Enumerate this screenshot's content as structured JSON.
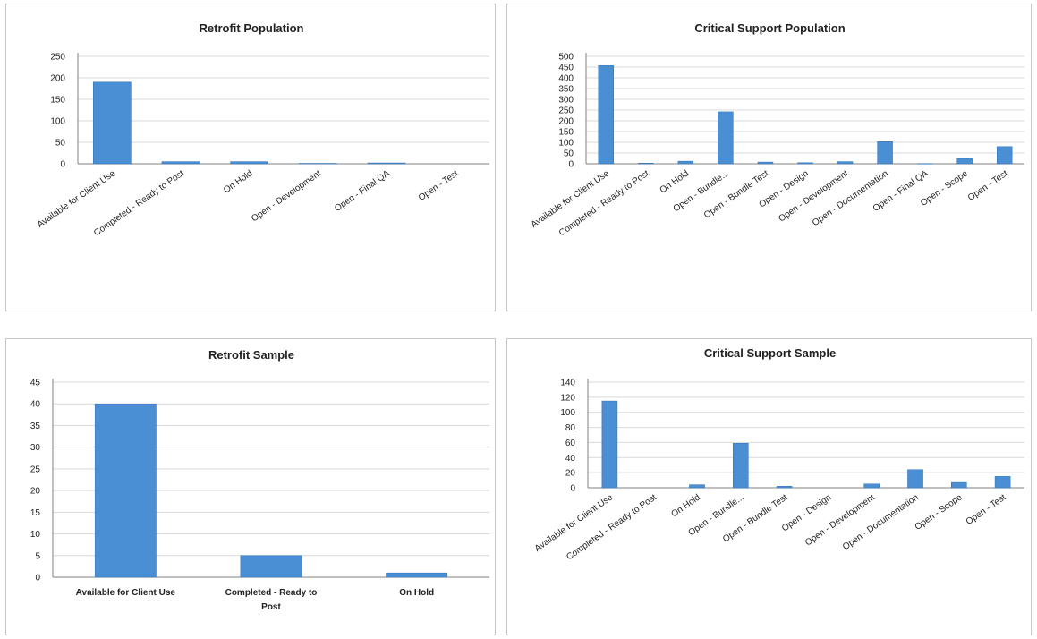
{
  "chart_data": [
    {
      "type": "bar",
      "title": "Retrofit Population",
      "categories": [
        "Available for Client Use",
        "Completed - Ready to Post",
        "On Hold",
        "Open - Development",
        "Open - Final QA",
        "Open - Test"
      ],
      "values": [
        190,
        5,
        5,
        1,
        2,
        0
      ],
      "ylim": [
        0,
        250
      ],
      "yticks": [
        0,
        50,
        100,
        150,
        200,
        250
      ],
      "grid": true,
      "legend": "none",
      "bar_color": "#4a8fd4"
    },
    {
      "type": "bar",
      "title": "Critical Support Population",
      "categories": [
        "Available for Client Use",
        "Completed - Ready to Post",
        "On Hold",
        "Open - Bundle...",
        "Open - Bundle Test",
        "Open - Design",
        "Open - Development",
        "Open - Documentation",
        "Open - Final QA",
        "Open - Scope",
        "Open - Test"
      ],
      "values": [
        457,
        3,
        12,
        242,
        8,
        5,
        10,
        103,
        1,
        25,
        80
      ],
      "ylim": [
        0,
        500
      ],
      "yticks": [
        0,
        50,
        100,
        150,
        200,
        250,
        300,
        350,
        400,
        450,
        500
      ],
      "grid": true,
      "legend": "none",
      "bar_color": "#4a8fd4"
    },
    {
      "type": "bar",
      "title": "Retrofit Sample",
      "categories": [
        "Available for Client Use",
        "Completed - Ready to Post",
        "On Hold"
      ],
      "values": [
        40,
        5,
        1
      ],
      "ylim": [
        0,
        45
      ],
      "yticks": [
        0,
        5,
        10,
        15,
        20,
        25,
        30,
        35,
        40,
        45
      ],
      "grid": true,
      "legend": "none",
      "bar_color": "#4a8fd4"
    },
    {
      "type": "bar",
      "title": "Critical Support Sample",
      "categories": [
        "Available for Client Use",
        "Completed - Ready to Post",
        "On Hold",
        "Open - Bundle...",
        "Open - Bundle Test",
        "Open - Design",
        "Open - Development",
        "Open - Documentation",
        "Open - Scope",
        "Open - Test"
      ],
      "values": [
        115,
        0,
        4,
        59,
        2,
        0,
        5,
        24,
        7,
        15
      ],
      "ylim": [
        0,
        140
      ],
      "yticks": [
        0,
        20,
        40,
        60,
        80,
        100,
        120,
        140
      ],
      "grid": true,
      "legend": "none",
      "bar_color": "#4a8fd4"
    }
  ]
}
